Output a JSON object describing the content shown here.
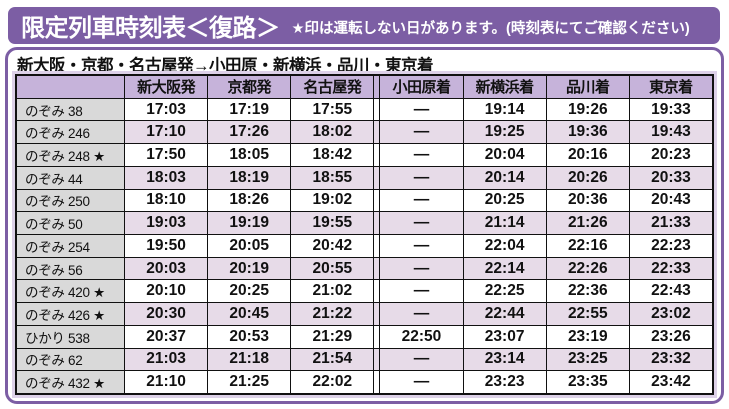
{
  "header": {
    "title": "限定列車時刻表＜復路＞",
    "note": "★印は運転しない日があります。(時刻表にてご確認ください)"
  },
  "panel": {
    "route_line": "新大阪・京都・名古屋発→小田原・新横浜・品川・東京着"
  },
  "colors": {
    "title_bar": "#7C5EA4",
    "header_cell": "#C6B3DA",
    "name_cell": "#D9D9D9",
    "alt_row": "#E7DBE8",
    "panel_margin": "#DDD1E8",
    "border_black": "#111111"
  },
  "table": {
    "headers": [
      "",
      "新大阪発",
      "京都発",
      "名古屋発",
      "小田原着",
      "新横浜着",
      "品川着",
      "東京着"
    ],
    "no_stop_symbol": "—",
    "rows": [
      {
        "train": "のぞみ 38",
        "times": [
          "17:03",
          "17:19",
          "17:55",
          "—",
          "19:14",
          "19:26",
          "19:33"
        ]
      },
      {
        "train": "のぞみ 246",
        "times": [
          "17:10",
          "17:26",
          "18:02",
          "—",
          "19:25",
          "19:36",
          "19:43"
        ]
      },
      {
        "train": "のぞみ 248 ★",
        "times": [
          "17:50",
          "18:05",
          "18:42",
          "—",
          "20:04",
          "20:16",
          "20:23"
        ]
      },
      {
        "train": "のぞみ 44",
        "times": [
          "18:03",
          "18:19",
          "18:55",
          "—",
          "20:14",
          "20:26",
          "20:33"
        ]
      },
      {
        "train": "のぞみ 250",
        "times": [
          "18:10",
          "18:26",
          "19:02",
          "—",
          "20:25",
          "20:36",
          "20:43"
        ]
      },
      {
        "train": "のぞみ 50",
        "times": [
          "19:03",
          "19:19",
          "19:55",
          "—",
          "21:14",
          "21:26",
          "21:33"
        ]
      },
      {
        "train": "のぞみ 254",
        "times": [
          "19:50",
          "20:05",
          "20:42",
          "—",
          "22:04",
          "22:16",
          "22:23"
        ]
      },
      {
        "train": "のぞみ 56",
        "times": [
          "20:03",
          "20:19",
          "20:55",
          "—",
          "22:14",
          "22:26",
          "22:33"
        ]
      },
      {
        "train": "のぞみ 420 ★",
        "times": [
          "20:10",
          "20:25",
          "21:02",
          "—",
          "22:25",
          "22:36",
          "22:43"
        ]
      },
      {
        "train": "のぞみ 426 ★",
        "times": [
          "20:30",
          "20:45",
          "21:22",
          "—",
          "22:44",
          "22:55",
          "23:02"
        ]
      },
      {
        "train": "ひかり 538",
        "times": [
          "20:37",
          "20:53",
          "21:29",
          "22:50",
          "23:07",
          "23:19",
          "23:26"
        ]
      },
      {
        "train": "のぞみ 62",
        "times": [
          "21:03",
          "21:18",
          "21:54",
          "—",
          "23:14",
          "23:25",
          "23:32"
        ]
      },
      {
        "train": "のぞみ 432 ★",
        "times": [
          "21:10",
          "21:25",
          "22:02",
          "—",
          "23:23",
          "23:35",
          "23:42"
        ]
      }
    ]
  }
}
